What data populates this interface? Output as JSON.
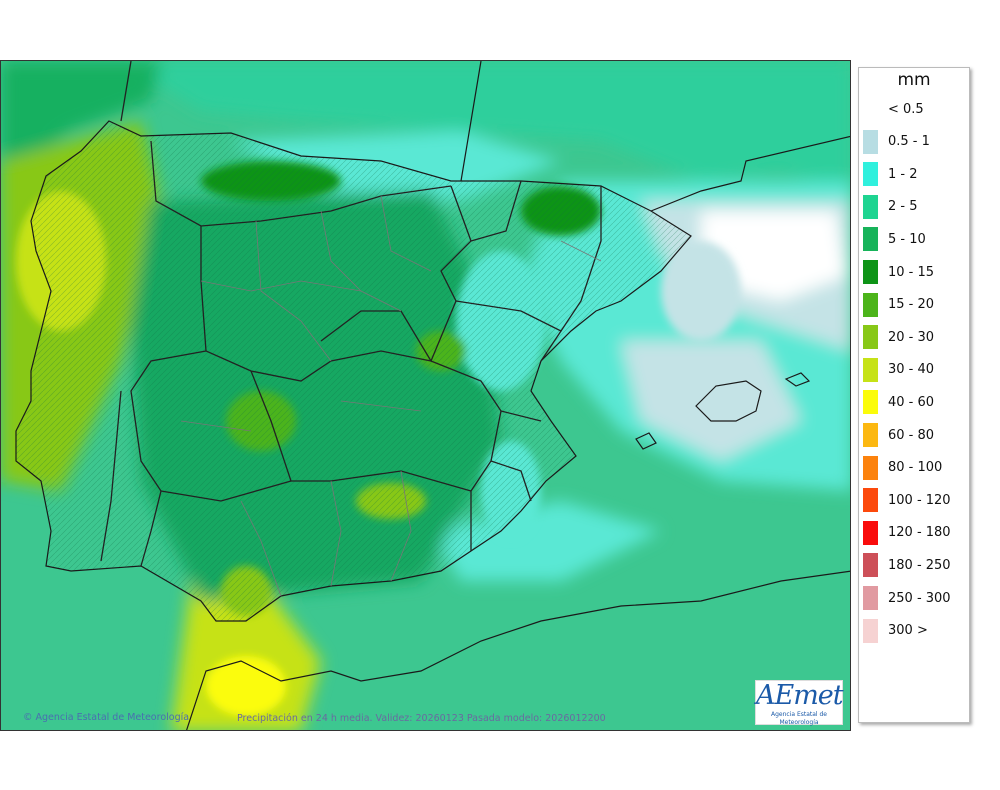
{
  "map": {
    "region": "Península Ibérica y Baleares",
    "copyright": "Agencia Estatal de Meteorología",
    "validity_text": "Precipitación en 24 h media. Validez: 20260123 Pasada modelo: 2026012200"
  },
  "logo": {
    "brand": "AEmet",
    "subtitle": "Agencia Estatal de Meteorología"
  },
  "legend": {
    "unit": "mm",
    "items": [
      {
        "label": "< 0.5",
        "color": "#ffffff"
      },
      {
        "label": "0.5 - 1",
        "color": "#b7dde3"
      },
      {
        "label": "1 - 2",
        "color": "#2ff0dd"
      },
      {
        "label": "2 - 5",
        "color": "#1ed491"
      },
      {
        "label": "5 - 10",
        "color": "#17b35a"
      },
      {
        "label": "10 - 15",
        "color": "#0e9417"
      },
      {
        "label": "15 - 20",
        "color": "#4cb41a"
      },
      {
        "label": "20 - 30",
        "color": "#88c817"
      },
      {
        "label": "30 - 40",
        "color": "#c6e217"
      },
      {
        "label": "40 - 60",
        "color": "#fbfc0a"
      },
      {
        "label": "60 - 80",
        "color": "#fcb811"
      },
      {
        "label": "80 - 100",
        "color": "#fc820d"
      },
      {
        "label": "100 - 120",
        "color": "#fc490c"
      },
      {
        "label": "120 - 180",
        "color": "#f90c0c"
      },
      {
        "label": "180 - 250",
        "color": "#cd4f58"
      },
      {
        "label": "250 - 300",
        "color": "#e19aa1"
      },
      {
        "label": "300 >",
        "color": "#f6d2d2"
      }
    ]
  }
}
